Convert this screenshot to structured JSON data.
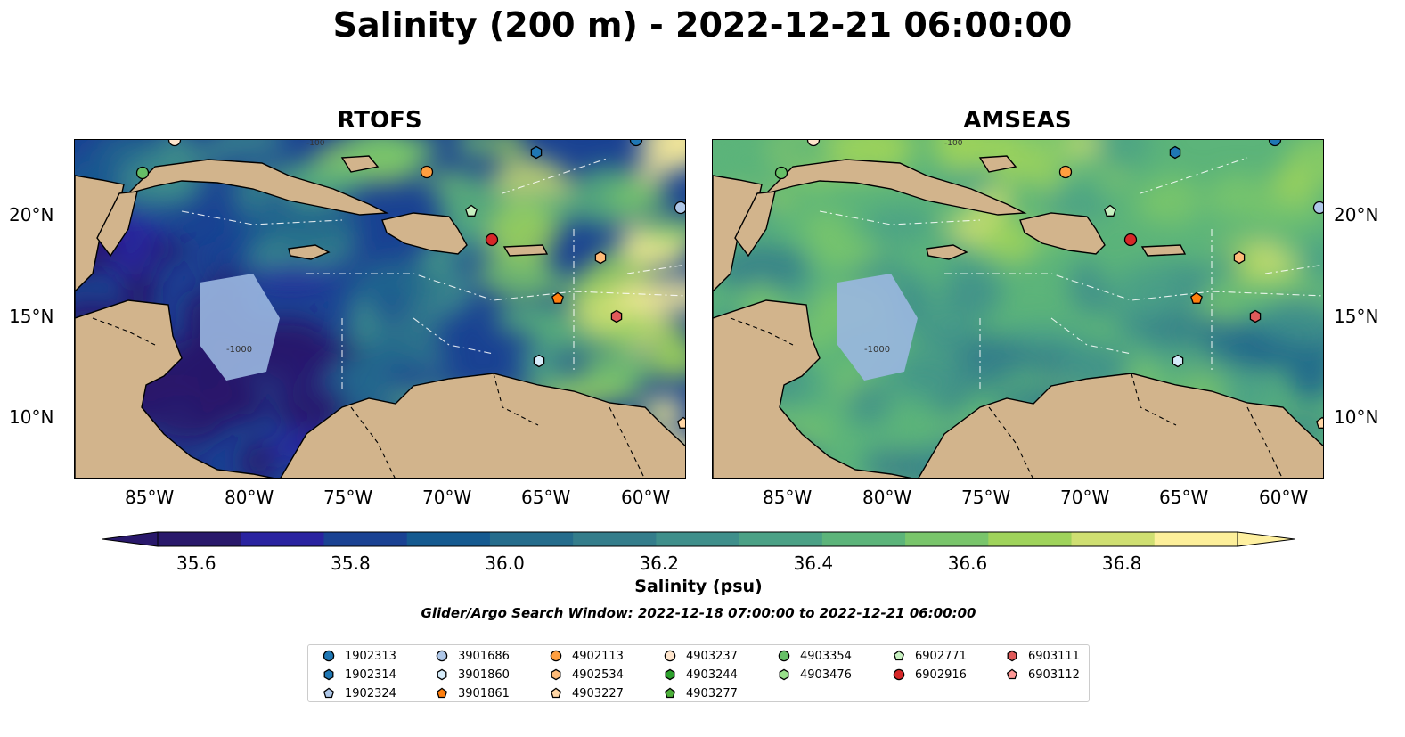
{
  "title": "Salinity (200 m) - 2022-12-21 06:00:00",
  "panels": [
    {
      "name": "RTOFS",
      "colormap_bias": "fresh"
    },
    {
      "name": "AMSEAS",
      "colormap_bias": "salty"
    }
  ],
  "map": {
    "lon_ticks": [
      "85°W",
      "80°W",
      "75°W",
      "70°W",
      "65°W",
      "60°W"
    ],
    "lat_ticks": [
      "20°N",
      "15°N",
      "10°N"
    ],
    "land_color": "#d2b48c",
    "shelf_color": "#9ab7e0",
    "contour_labels": [
      "-1000",
      "-100"
    ]
  },
  "colorbar": {
    "label": "Salinity (psu)",
    "ticks": [
      "35.6",
      "35.8",
      "36.0",
      "36.2",
      "36.4",
      "36.6",
      "36.8"
    ],
    "range": [
      35.55,
      36.95
    ],
    "extend": "both",
    "colormap": "haline",
    "colors": [
      "#29186b",
      "#2a23a0",
      "#1a4293",
      "#155a90",
      "#256c8c",
      "#347d8b",
      "#3f8f8b",
      "#4ba186",
      "#5cb47a",
      "#79c56b",
      "#9fd35b",
      "#cfdf72",
      "#fdef9a"
    ]
  },
  "search_window": "Glider/Argo Search Window: 2022-12-18 07:00:00 to 2022-12-21 06:00:00",
  "legend": {
    "columns": [
      [
        {
          "id": "1902313",
          "shape": "circle",
          "color": "#1f77b4"
        },
        {
          "id": "1902314",
          "shape": "hexagon",
          "color": "#1f77b4"
        },
        {
          "id": "1902324",
          "shape": "pentagon",
          "color": "#aec7e8"
        }
      ],
      [
        {
          "id": "3901686",
          "shape": "circle",
          "color": "#aec7e8"
        },
        {
          "id": "3901860",
          "shape": "hexagon",
          "color": "#d6ecfa"
        },
        {
          "id": "3901861",
          "shape": "pentagon",
          "color": "#ff7f0e"
        }
      ],
      [
        {
          "id": "4902113",
          "shape": "circle",
          "color": "#ff9f40"
        },
        {
          "id": "4902534",
          "shape": "hexagon",
          "color": "#ffbb78"
        },
        {
          "id": "4903227",
          "shape": "pentagon",
          "color": "#ffd6a5"
        }
      ],
      [
        {
          "id": "4903237",
          "shape": "circle",
          "color": "#ffe5cc"
        },
        {
          "id": "4903244",
          "shape": "hexagon",
          "color": "#2ca02c"
        },
        {
          "id": "4903277",
          "shape": "pentagon",
          "color": "#4caf3a"
        }
      ],
      [
        {
          "id": "4903354",
          "shape": "circle",
          "color": "#66bf66"
        },
        {
          "id": "4903476",
          "shape": "hexagon",
          "color": "#98df8a"
        }
      ],
      [
        {
          "id": "6902771",
          "shape": "pentagon",
          "color": "#c7f0c0"
        },
        {
          "id": "6902916",
          "shape": "circle",
          "color": "#d62728"
        }
      ],
      [
        {
          "id": "6903111",
          "shape": "hexagon",
          "color": "#e05a5a"
        },
        {
          "id": "6903112",
          "shape": "pentagon",
          "color": "#ff9896"
        }
      ]
    ]
  }
}
